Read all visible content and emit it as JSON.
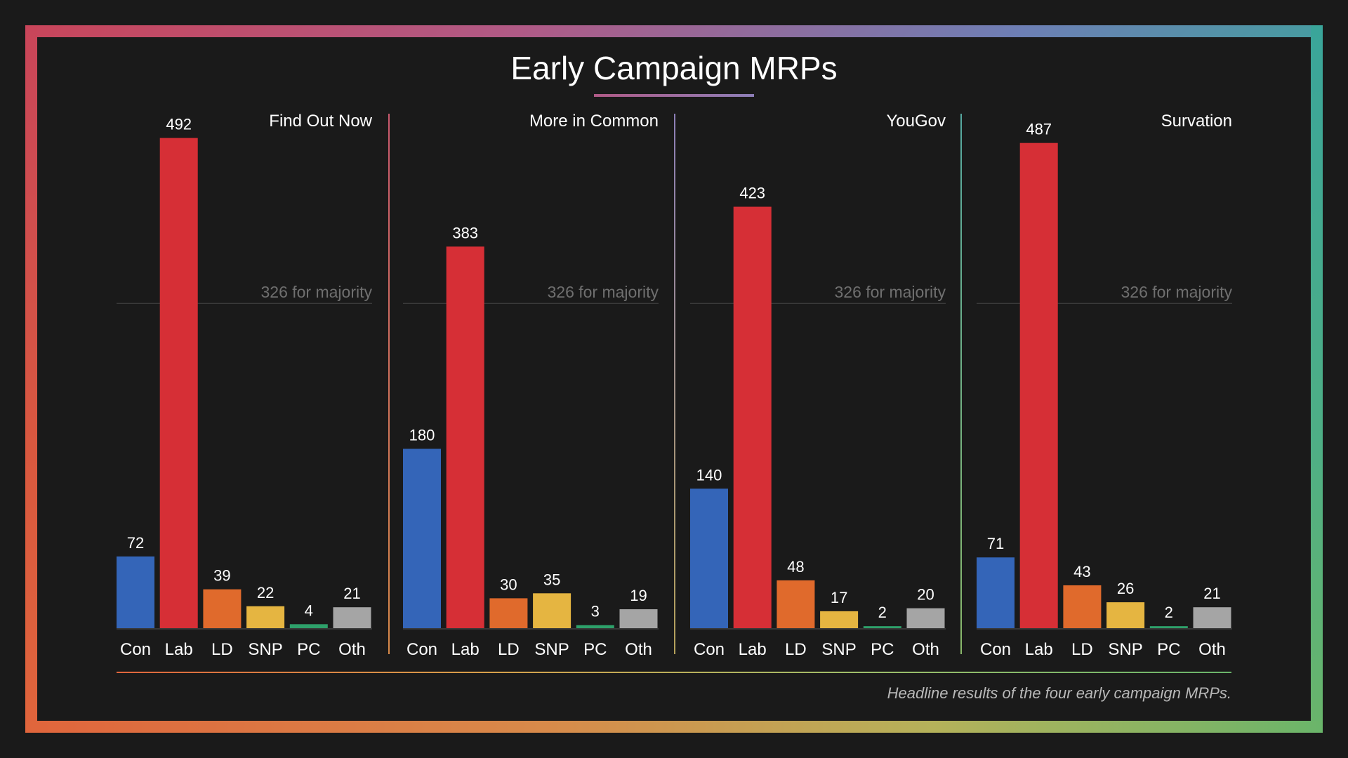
{
  "title": "Early Campaign MRPs",
  "caption": "Headline results of the four early campaign MRPs.",
  "majority_label": "326 for majority",
  "colors": {
    "Con": "#3465b8",
    "Lab": "#d62f36",
    "LD": "#e06a2c",
    "SNP": "#e5b541",
    "PC": "#2ea06a",
    "Oth": "#a5a5a5"
  },
  "chart_data": [
    {
      "type": "bar",
      "title": "Find Out Now",
      "categories": [
        "Con",
        "Lab",
        "LD",
        "SNP",
        "PC",
        "Oth"
      ],
      "values": [
        72,
        492,
        39,
        22,
        4,
        21
      ],
      "reference_line": {
        "value": 326,
        "label": "326 for majority"
      },
      "ylim": [
        0,
        500
      ]
    },
    {
      "type": "bar",
      "title": "More in Common",
      "categories": [
        "Con",
        "Lab",
        "LD",
        "SNP",
        "PC",
        "Oth"
      ],
      "values": [
        180,
        383,
        30,
        35,
        3,
        19
      ],
      "reference_line": {
        "value": 326,
        "label": "326 for majority"
      },
      "ylim": [
        0,
        500
      ]
    },
    {
      "type": "bar",
      "title": "YouGov",
      "categories": [
        "Con",
        "Lab",
        "LD",
        "SNP",
        "PC",
        "Oth"
      ],
      "values": [
        140,
        423,
        48,
        17,
        2,
        20
      ],
      "reference_line": {
        "value": 326,
        "label": "326 for majority"
      },
      "ylim": [
        0,
        500
      ]
    },
    {
      "type": "bar",
      "title": "Survation",
      "categories": [
        "Con",
        "Lab",
        "LD",
        "SNP",
        "PC",
        "Oth"
      ],
      "values": [
        71,
        487,
        43,
        26,
        2,
        21
      ],
      "reference_line": {
        "value": 326,
        "label": "326 for majority"
      },
      "ylim": [
        0,
        500
      ]
    }
  ]
}
